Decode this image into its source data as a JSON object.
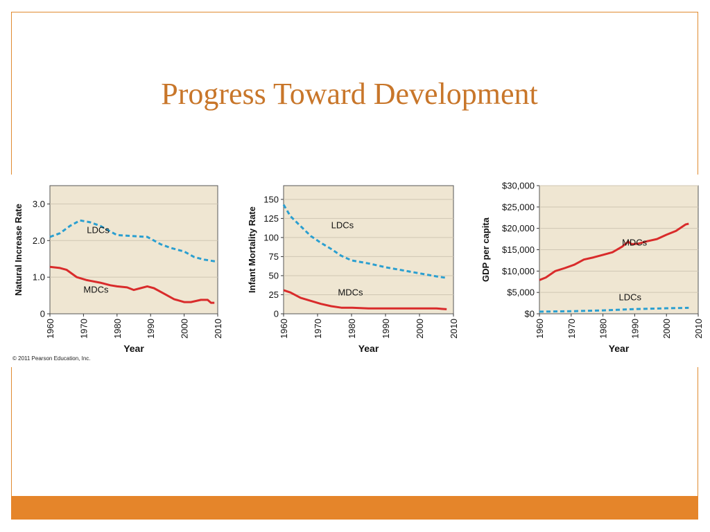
{
  "slide": {
    "title": "Progress Toward Development",
    "copyright": "© 2011 Pearson Education, Inc."
  },
  "colors": {
    "accent": "#e5852a",
    "title": "#c8762a",
    "plot_bg": "#efe6d2",
    "ldc": "#2b9fd0",
    "mdc": "#d92b2b"
  },
  "chart_data": [
    {
      "type": "line",
      "ylabel": "Natural Increase Rate",
      "xlabel": "Year",
      "xlim": [
        1960,
        2010
      ],
      "ylim": [
        0,
        3.5
      ],
      "xticks": [
        "1960",
        "1970",
        "1980",
        "1990",
        "2000",
        "2010"
      ],
      "yticks": [
        "0",
        "1.0",
        "2.0",
        "3.0"
      ],
      "series": [
        {
          "name": "LDCs",
          "style": "dashed",
          "color": "#2b9fd0",
          "x": [
            1960,
            1963,
            1966,
            1969,
            1972,
            1975,
            1978,
            1980,
            1985,
            1989,
            1990,
            1993,
            1996,
            2000,
            2003,
            2006,
            2010
          ],
          "y": [
            2.1,
            2.2,
            2.4,
            2.55,
            2.5,
            2.4,
            2.25,
            2.15,
            2.12,
            2.1,
            2.05,
            1.9,
            1.8,
            1.7,
            1.55,
            1.48,
            1.42
          ]
        },
        {
          "name": "MDCs",
          "style": "solid",
          "color": "#d92b2b",
          "x": [
            1960,
            1963,
            1965,
            1968,
            1971,
            1975,
            1978,
            1980,
            1983,
            1985,
            1987,
            1989,
            1991,
            1994,
            1997,
            2000,
            2002,
            2005,
            2007,
            2008,
            2009
          ],
          "y": [
            1.28,
            1.25,
            1.2,
            1.0,
            0.92,
            0.85,
            0.78,
            0.75,
            0.72,
            0.65,
            0.7,
            0.75,
            0.7,
            0.55,
            0.4,
            0.32,
            0.32,
            0.38,
            0.38,
            0.3,
            0.3
          ]
        }
      ],
      "annotations": [
        "LDCs",
        "MDCs"
      ]
    },
    {
      "type": "line",
      "ylabel": "Infant Mortality Rate",
      "xlabel": "Year",
      "xlim": [
        1960,
        2010
      ],
      "ylim": [
        0,
        168
      ],
      "xticks": [
        "1960",
        "1970",
        "1980",
        "1990",
        "2000",
        "2010"
      ],
      "yticks": [
        "0",
        "25",
        "50",
        "75",
        "100",
        "125",
        "150"
      ],
      "series": [
        {
          "name": "LDCs",
          "style": "dashed",
          "color": "#2b9fd0",
          "x": [
            1960,
            1962,
            1965,
            1968,
            1971,
            1974,
            1977,
            1980,
            1985,
            1990,
            1995,
            2000,
            2005,
            2008
          ],
          "y": [
            143,
            128,
            115,
            102,
            93,
            85,
            76,
            70,
            66,
            61,
            57,
            53,
            49,
            47
          ]
        },
        {
          "name": "MDCs",
          "style": "solid",
          "color": "#d92b2b",
          "x": [
            1960,
            1962,
            1965,
            1968,
            1971,
            1974,
            1977,
            1980,
            1985,
            1990,
            1995,
            2000,
            2005,
            2008
          ],
          "y": [
            31,
            28,
            21,
            17,
            13,
            10,
            8,
            8,
            7,
            7,
            7,
            7,
            7,
            6
          ]
        }
      ],
      "annotations": [
        "LDCs",
        "MDCs"
      ]
    },
    {
      "type": "line",
      "ylabel": "GDP per capita",
      "xlabel": "Year",
      "xlim": [
        1960,
        2010
      ],
      "ylim": [
        0,
        30000
      ],
      "xticks": [
        "1960",
        "1970",
        "1980",
        "1990",
        "2000",
        "2010"
      ],
      "yticks": [
        "$0",
        "$5,000",
        "$10,000",
        "$15,000",
        "$20,000",
        "$25,000",
        "$30,000"
      ],
      "series": [
        {
          "name": "MDCs",
          "style": "solid",
          "color": "#d92b2b",
          "x": [
            1960,
            1962,
            1965,
            1968,
            1971,
            1974,
            1977,
            1980,
            1983,
            1986,
            1988,
            1989,
            1991,
            1994,
            1997,
            2000,
            2003,
            2006,
            2007
          ],
          "y": [
            7900,
            8500,
            10000,
            10700,
            11500,
            12700,
            13200,
            13800,
            14400,
            15700,
            16900,
            16300,
            16400,
            17000,
            17500,
            18500,
            19400,
            20900,
            21100
          ]
        },
        {
          "name": "LDCs",
          "style": "dashed",
          "color": "#2b9fd0",
          "x": [
            1960,
            1970,
            1980,
            1990,
            2000,
            2007
          ],
          "y": [
            500,
            600,
            800,
            1100,
            1300,
            1400
          ]
        }
      ],
      "annotations": [
        "MDCs",
        "LDCs"
      ]
    }
  ]
}
